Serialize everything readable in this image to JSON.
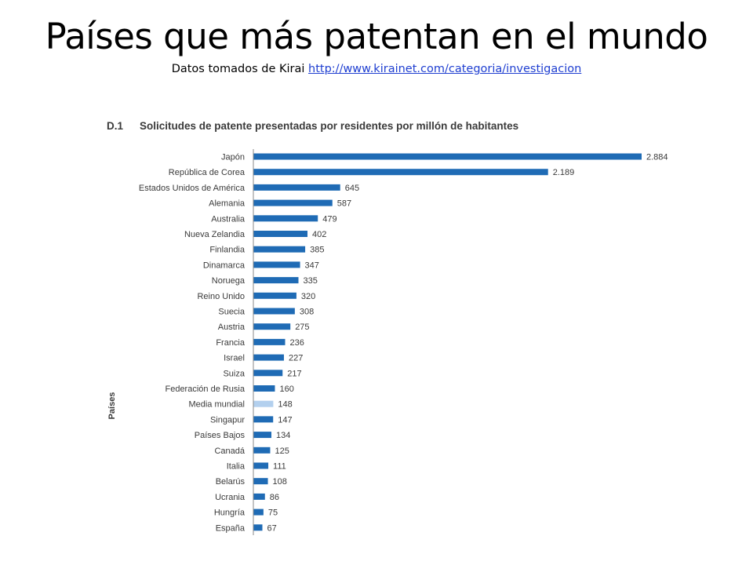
{
  "slide": {
    "title": "Países que más patentan en el mundo",
    "subtitle_prefix": "Datos tomados de Kirai",
    "subtitle_link": "http://www.kirainet.com/categoria/investigacion"
  },
  "chart_data": {
    "type": "bar",
    "orientation": "horizontal",
    "number": "D.1",
    "title": "Solicitudes de patente presentadas por residentes por millón de habitantes",
    "ylabel": "Países",
    "xlabel": "",
    "categories": [
      "Japón",
      "República de Corea",
      "Estados Unidos de América",
      "Alemania",
      "Australia",
      "Nueva Zelandia",
      "Finlandia",
      "Dinamarca",
      "Noruega",
      "Reino Unido",
      "Suecia",
      "Austria",
      "Francia",
      "Israel",
      "Suiza",
      "Federación de Rusia",
      "Media mundial",
      "Singapur",
      "Países Bajos",
      "Canadá",
      "Italia",
      "Belarús",
      "Ucrania",
      "Hungría",
      "España"
    ],
    "values": [
      2884,
      2189,
      645,
      587,
      479,
      402,
      385,
      347,
      335,
      320,
      308,
      275,
      236,
      227,
      217,
      160,
      148,
      147,
      134,
      125,
      111,
      108,
      86,
      75,
      67
    ],
    "value_labels": [
      "2.884",
      "2.189",
      "645",
      "587",
      "479",
      "402",
      "385",
      "347",
      "335",
      "320",
      "308",
      "275",
      "236",
      "227",
      "217",
      "160",
      "148",
      "147",
      "134",
      "125",
      "111",
      "108",
      "86",
      "75",
      "67"
    ],
    "highlight_category": "Media mundial",
    "xlim": [
      0,
      3000
    ],
    "grid": false,
    "legend": "none",
    "colors": {
      "bar": "#1f6bb5",
      "highlight": "#b3d0ee",
      "label": "#3a3a3a"
    }
  }
}
